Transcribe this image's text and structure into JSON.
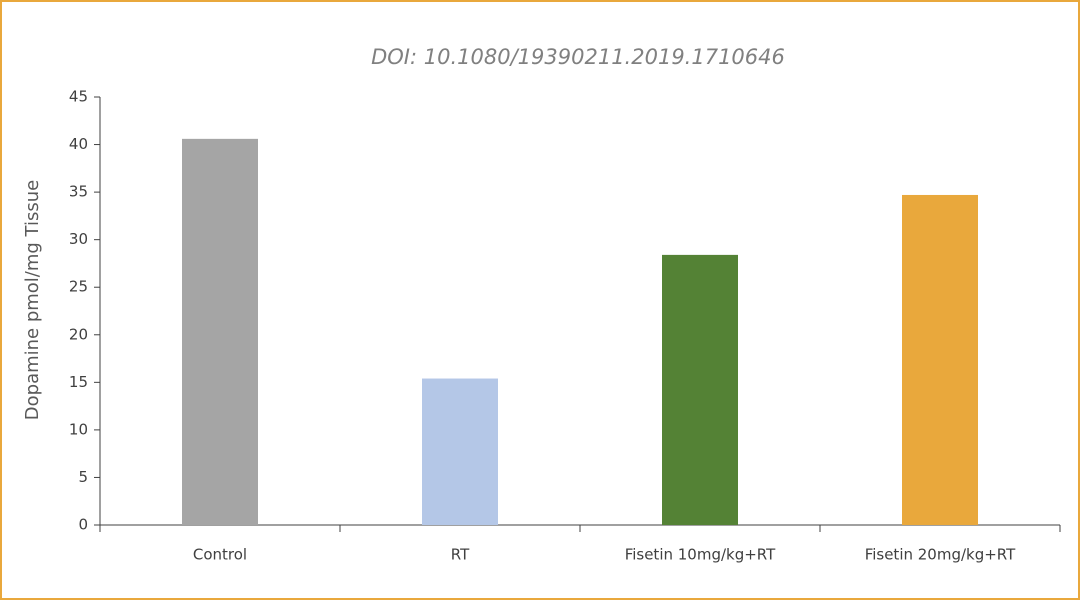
{
  "chart_data": {
    "type": "bar",
    "title": "DOI: 10.1080/19390211.2019.1710646",
    "y_label": "Dopamine pmol/mg Tissue",
    "categories": [
      "Control",
      "RT",
      "Fisetin 10mg/kg+RT",
      "Fisetin 20mg/kg+RT"
    ],
    "values": [
      40.6,
      15.4,
      28.4,
      34.7
    ],
    "colors": [
      "#a5a5a5",
      "#b4c7e7",
      "#548235",
      "#e9a83c"
    ],
    "ylim": [
      0,
      45
    ],
    "yticks": [
      0,
      5,
      10,
      15,
      20,
      25,
      30,
      35,
      40,
      45
    ],
    "grid": false
  }
}
